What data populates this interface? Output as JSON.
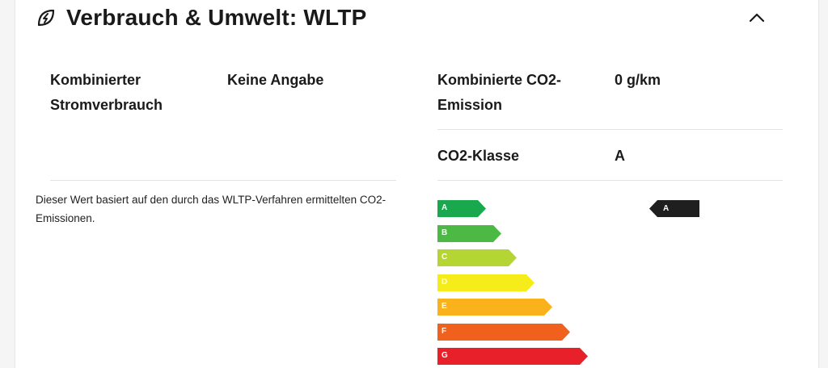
{
  "section": {
    "title": "Verbrauch & Umwelt: WLTP",
    "icon": "leaf-bolt-icon",
    "collapse_icon": "chevron-up-icon"
  },
  "left": {
    "consumption_label": "Kombinierter Stromverbrauch",
    "consumption_value": "Keine Angabe",
    "note": "Dieser Wert basiert auf den durch das WLTP-Verfahren ermittelten CO2-Emissionen."
  },
  "right": {
    "co2_label": "Kombinierte CO2-Emission",
    "co2_value": "0 g/km",
    "class_label": "CO2-Klasse",
    "class_value": "A"
  },
  "energy_scale": {
    "classes": [
      {
        "letter": "A",
        "color": "#1aa84f"
      },
      {
        "letter": "B",
        "color": "#4cb944"
      },
      {
        "letter": "C",
        "color": "#b5d534"
      },
      {
        "letter": "D",
        "color": "#f5ec1a"
      },
      {
        "letter": "E",
        "color": "#f9b21b"
      },
      {
        "letter": "F",
        "color": "#f0611e"
      },
      {
        "letter": "G",
        "color": "#e8202a"
      }
    ],
    "current": "A",
    "marker_color": "#1f1f1f"
  }
}
